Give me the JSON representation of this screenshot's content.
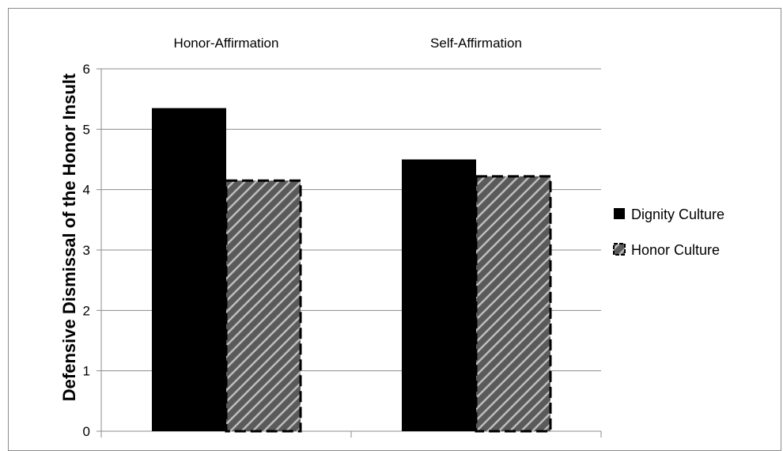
{
  "chart_data": {
    "type": "bar",
    "title": "",
    "xlabel": "",
    "ylabel": "Defensive Dismissal of the Honor Insult",
    "categories": [
      "Honor-Affirmation",
      "Self-Affirmation"
    ],
    "category_labels_position": "top",
    "series": [
      {
        "name": "Dignity Culture",
        "values": [
          5.35,
          4.5
        ],
        "color": "#000000",
        "pattern": "solid"
      },
      {
        "name": "Honor Culture",
        "values": [
          4.15,
          4.22
        ],
        "color": "#777777",
        "pattern": "diagonal-hatch-dashed-border"
      }
    ],
    "ylim": [
      0,
      6
    ],
    "yticks": [
      "0",
      "1",
      "2",
      "3",
      "4",
      "5",
      "6"
    ],
    "grid": true,
    "legend_position": "right"
  }
}
